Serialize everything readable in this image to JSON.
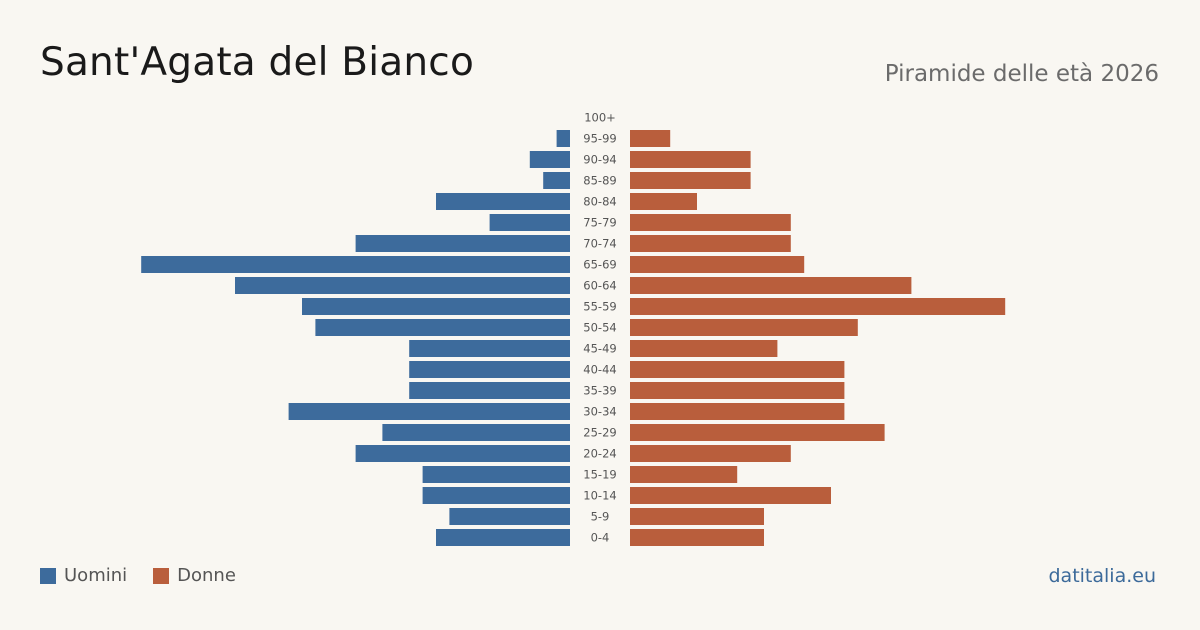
{
  "header": {
    "title": "Sant'Agata del Bianco",
    "subtitle": "Piramide delle età 2026"
  },
  "legend": {
    "male_label": "Uomini",
    "female_label": "Donne"
  },
  "footer": {
    "source": "datitalia.eu"
  },
  "colors": {
    "male": "#3d6b9c",
    "female": "#b95e3c",
    "background": "#f9f7f2",
    "label": "#555555"
  },
  "chart_data": {
    "type": "bar",
    "orientation": "horizontal-pyramid",
    "categories": [
      "100+",
      "95-99",
      "90-94",
      "85-89",
      "80-84",
      "75-79",
      "70-74",
      "65-69",
      "60-64",
      "55-59",
      "50-54",
      "45-49",
      "40-44",
      "35-39",
      "30-34",
      "25-29",
      "20-24",
      "15-19",
      "10-14",
      "5-9",
      "0-4"
    ],
    "series": [
      {
        "name": "Uomini",
        "values": [
          0,
          1,
          3,
          2,
          10,
          6,
          16,
          32,
          25,
          20,
          19,
          12,
          12,
          12,
          21,
          14,
          16,
          11,
          11,
          9,
          10
        ]
      },
      {
        "name": "Donne",
        "values": [
          0,
          3,
          9,
          9,
          5,
          12,
          12,
          13,
          21,
          28,
          17,
          11,
          16,
          16,
          16,
          19,
          12,
          8,
          15,
          10,
          10
        ]
      }
    ],
    "legend_position": "bottom-left",
    "grid": false
  }
}
